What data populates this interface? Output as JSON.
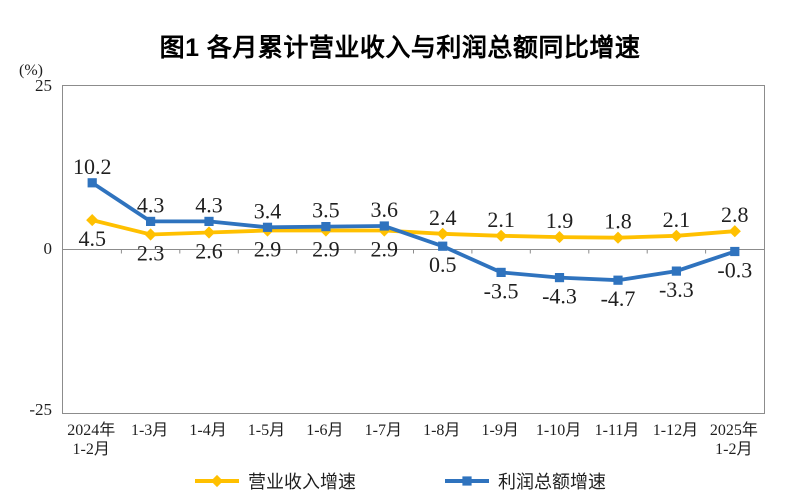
{
  "chart_data": {
    "type": "line",
    "title": "图1  各月累计营业收入与利润总额同比增速",
    "unit_label": "(%)",
    "ylim": [
      -25,
      25
    ],
    "yticks": [
      "25",
      "0",
      "-25"
    ],
    "grid": "zero-line-only",
    "legend_position": "bottom",
    "axis_color": "#8c8c8c",
    "label_color": "#1f1f1f",
    "categories": [
      [
        "2024年",
        "1-2月"
      ],
      [
        "1-3月"
      ],
      [
        "1-4月"
      ],
      [
        "1-5月"
      ],
      [
        "1-6月"
      ],
      [
        "1-7月"
      ],
      [
        "1-8月"
      ],
      [
        "1-9月"
      ],
      [
        "1-10月"
      ],
      [
        "1-11月"
      ],
      [
        "1-12月"
      ],
      [
        "2025年",
        "1-2月"
      ]
    ],
    "series": [
      {
        "name": "营业收入增速",
        "slug": "revenue-growth",
        "color": "#FFC000",
        "marker": "diamond",
        "values": [
          4.5,
          2.3,
          2.6,
          2.9,
          2.9,
          2.9,
          2.4,
          2.1,
          1.9,
          1.8,
          2.1,
          2.8
        ],
        "label_positions": [
          "below",
          "below",
          "below",
          "below",
          "below",
          "below",
          "above",
          "above",
          "above",
          "above",
          "above",
          "above"
        ]
      },
      {
        "name": "利润总额增速",
        "slug": "profit-growth",
        "color": "#2F73BE",
        "marker": "square",
        "values": [
          10.2,
          4.3,
          4.3,
          3.4,
          3.5,
          3.6,
          0.5,
          -3.5,
          -4.3,
          -4.7,
          -3.3,
          -0.3
        ],
        "label_positions": [
          "above",
          "above",
          "above",
          "above",
          "above",
          "above",
          "below",
          "below",
          "below",
          "below",
          "below",
          "below"
        ]
      }
    ]
  }
}
